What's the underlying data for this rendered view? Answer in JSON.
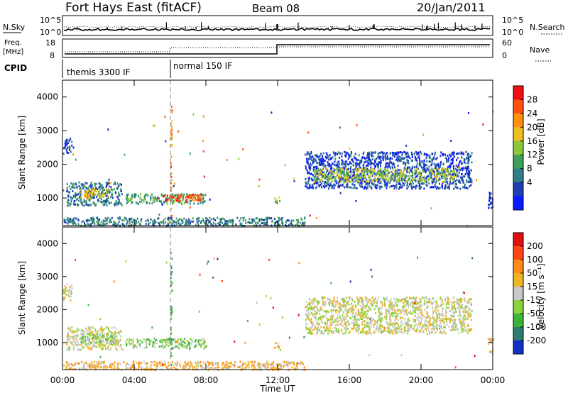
{
  "header": {
    "title": "Fort Hays East (fitACF)",
    "beam": "Beam 08",
    "date": "20/Jan/2011"
  },
  "top_panel": {
    "nsky_label": "N.Sky",
    "nsky_ticks": [
      "10^5",
      "10^0"
    ],
    "nsearch_label": "N.Search",
    "nsearch_ticks": [
      "10^5",
      "10^0"
    ],
    "freq_label": "Freq.",
    "freq_unit": "[MHz]",
    "freq_ticks": [
      "18",
      "8"
    ],
    "nave_label": "Nave",
    "nave_ticks": [
      "60",
      "0"
    ],
    "cpid_label": "CPID",
    "cpid_modes": [
      {
        "label": "themis 3300 IF",
        "start_hour": 0
      },
      {
        "label": "normal 150 IF",
        "start_hour": 6
      }
    ]
  },
  "chart_data": [
    {
      "type": "heatmap",
      "name": "power",
      "ylabel": "Slant Range [km]",
      "xlabel": "",
      "x_ticks": [
        "00:00",
        "04:00",
        "08:00",
        "12:00",
        "16:00",
        "20:00",
        "00:00"
      ],
      "y_ticks": [
        1000,
        2000,
        3000,
        4000
      ],
      "xlim_hours": [
        0,
        24
      ],
      "ylim_km": [
        180,
        4500
      ],
      "colorbar": {
        "label": "Power [dB]",
        "ticks": [
          "28",
          "24",
          "20",
          "16",
          "12",
          "8",
          "4"
        ],
        "colors": [
          "#0a1aff",
          "#1e3cb4",
          "#2e7d87",
          "#3fa05a",
          "#8cc63e",
          "#f0c020",
          "#ff9010",
          "#ff5010",
          "#ee1010"
        ]
      },
      "echo_regions": [
        {
          "t_start": 0.0,
          "t_end": 0.5,
          "r_min": 2300,
          "r_max": 2800,
          "level": 1
        },
        {
          "t_start": 0.2,
          "t_end": 3.3,
          "r_min": 800,
          "r_max": 1500,
          "level": 2
        },
        {
          "t_start": 1.0,
          "t_end": 2.5,
          "r_min": 1000,
          "r_max": 1300,
          "level": 5
        },
        {
          "t_start": 3.5,
          "t_end": 8.0,
          "r_min": 850,
          "r_max": 1150,
          "level": 3
        },
        {
          "t_start": 5.6,
          "t_end": 7.8,
          "r_min": 930,
          "r_max": 1130,
          "level": 7
        },
        {
          "t_start": 6.0,
          "t_end": 6.05,
          "r_min": 300,
          "r_max": 3800,
          "level": 6
        },
        {
          "t_start": 0.0,
          "t_end": 13.5,
          "r_min": 200,
          "r_max": 450,
          "level": 2
        },
        {
          "t_start": 11.8,
          "t_end": 12.1,
          "r_min": 850,
          "r_max": 1050,
          "level": 4
        },
        {
          "t_start": 13.5,
          "t_end": 22.8,
          "r_min": 1300,
          "r_max": 2400,
          "level": 1
        },
        {
          "t_start": 14.0,
          "t_end": 22.0,
          "r_min": 1500,
          "r_max": 1900,
          "level": 4
        },
        {
          "t_start": 23.7,
          "t_end": 24.0,
          "r_min": 700,
          "r_max": 1200,
          "level": 1
        }
      ]
    },
    {
      "type": "heatmap",
      "name": "velocity",
      "ylabel": "Slant Range [km]",
      "xlabel": "Time UT",
      "x_ticks": [
        "00:00",
        "04:00",
        "08:00",
        "12:00",
        "16:00",
        "20:00",
        "00:00"
      ],
      "y_ticks": [
        1000,
        2000,
        3000,
        4000
      ],
      "xlim_hours": [
        0,
        24
      ],
      "ylim_km": [
        180,
        4500
      ],
      "colorbar": {
        "label": "Velocity [m s⁻¹]",
        "ticks": [
          "200",
          "100",
          "50",
          "15",
          "-15",
          "-50",
          "-100",
          "-200"
        ],
        "colors": [
          "#1030c8",
          "#2c7d6e",
          "#3cb43c",
          "#8cd23c",
          "#c8c8c8",
          "#f0b428",
          "#ff8c1a",
          "#ff4614",
          "#e01010"
        ]
      },
      "echo_regions": [
        {
          "t_start": 0.0,
          "t_end": 0.5,
          "r_min": 2300,
          "r_max": 2800,
          "level": 4
        },
        {
          "t_start": 0.2,
          "t_end": 3.3,
          "r_min": 800,
          "r_max": 1500,
          "level": 4
        },
        {
          "t_start": 1.0,
          "t_end": 3.0,
          "r_min": 1000,
          "r_max": 1300,
          "level": 3
        },
        {
          "t_start": 3.5,
          "t_end": 8.0,
          "r_min": 850,
          "r_max": 1150,
          "level": 3
        },
        {
          "t_start": 6.0,
          "t_end": 6.05,
          "r_min": 300,
          "r_max": 3800,
          "level": 2
        },
        {
          "t_start": 0.0,
          "t_end": 13.5,
          "r_min": 200,
          "r_max": 450,
          "level": 5
        },
        {
          "t_start": 11.8,
          "t_end": 12.1,
          "r_min": 850,
          "r_max": 1050,
          "level": 5
        },
        {
          "t_start": 13.5,
          "t_end": 22.8,
          "r_min": 1300,
          "r_max": 2400,
          "level": 4
        },
        {
          "t_start": 23.7,
          "t_end": 24.0,
          "r_min": 700,
          "r_max": 1200,
          "level": 4
        }
      ]
    }
  ]
}
